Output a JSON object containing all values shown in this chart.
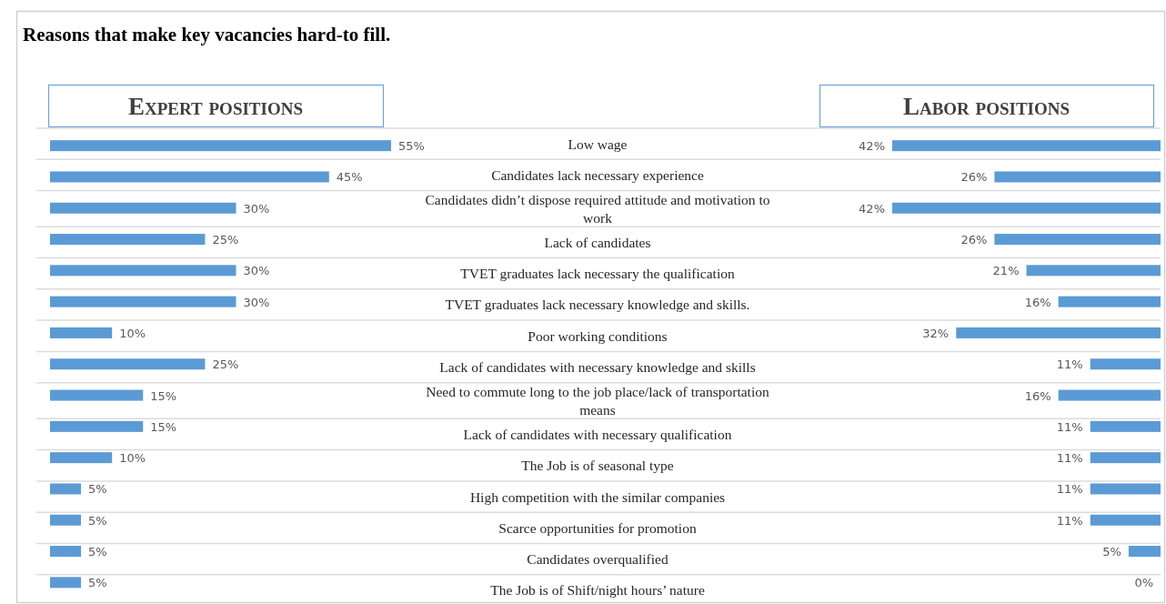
{
  "chart_data": [
    {
      "type": "other",
      "title": "Reasons that make key vacancies hard-to fill."
    },
    {
      "type": "bar",
      "orientation": "horizontal",
      "title": "Expert positions",
      "tick_labels": "y",
      "color": "#5b9bd5",
      "categories": [
        "Low wage",
        "Candidates lack necessary experience",
        "Candidates didn’t dispose required attitude and motivation to work",
        "Lack of candidates",
        "TVET graduates lack necessary the qualification",
        "TVET graduates lack necessary knowledge and skills.",
        "Poor working conditions",
        "Lack of candidates with necessary knowledge and skills",
        "Need to commute long to the job place/lack of transportation means",
        "Lack of candidates with necessary qualification",
        "The Job is of seasonal type",
        "High competition with the similar companies",
        "Scarce opportunities for promotion",
        "Candidates overqualified",
        "The Job is of Shift/night hours’ nature"
      ],
      "values": [
        55,
        45,
        30,
        25,
        30,
        30,
        10,
        25,
        15,
        15,
        10,
        5,
        5,
        5,
        5
      ],
      "value_labels": [
        "55%",
        "45%",
        "30%",
        "25%",
        "30%",
        "30%",
        "10%",
        "25%",
        "15%",
        "15%",
        "10%",
        "5%",
        "5%",
        "5%",
        "5%"
      ]
    },
    {
      "type": "bar",
      "orientation": "horizontal",
      "title": "Labor positions",
      "tick_labels": false,
      "color": "#5b9bd5",
      "categories": [
        "Low wage",
        "Candidates lack necessary experience",
        "Candidates didn’t dispose required attitude and motivation to work",
        "Lack of candidates",
        "TVET graduates lack necessary the qualification",
        "TVET graduates lack necessary knowledge and skills.",
        "Poor working conditions",
        "Lack of candidates with necessary knowledge and skills",
        "Need to commute long to the job place/lack of transportation means",
        "Lack of candidates with necessary qualification",
        "The Job is of seasonal type",
        "High competition with the similar companies",
        "Scarce opportunities for promotion",
        "Candidates overqualified",
        "The Job is of Shift/night hours’ nature"
      ],
      "values": [
        42,
        26,
        42,
        26,
        21,
        16,
        32,
        11,
        16,
        11,
        11,
        11,
        11,
        5,
        0
      ],
      "value_labels": [
        "42%",
        "26%",
        "42%",
        "26%",
        "21%",
        "16%",
        "32%",
        "11%",
        "16%",
        "11%",
        "11%",
        "11%",
        "11%",
        "5%",
        "0%"
      ]
    }
  ]
}
